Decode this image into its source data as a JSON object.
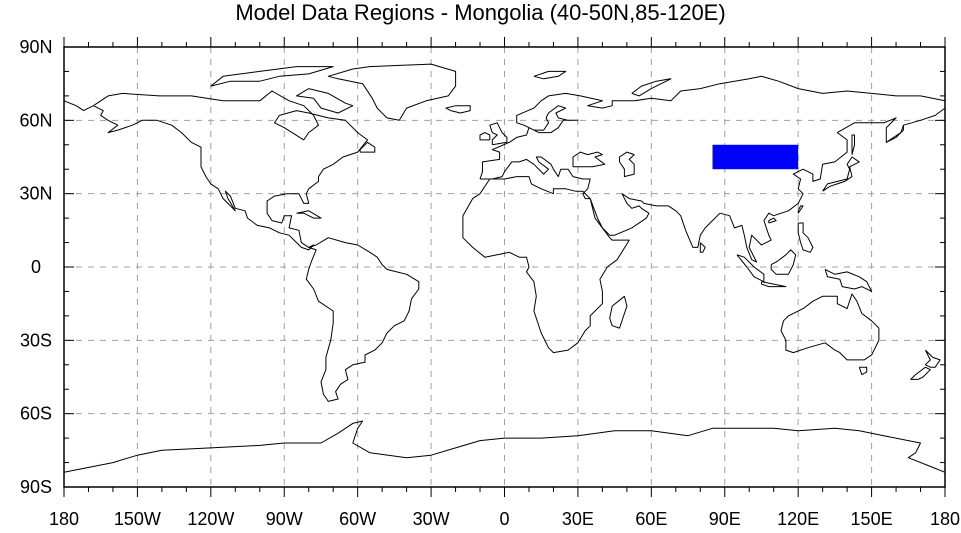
{
  "title": "Model Data Regions - Mongolia (40-50N,85-120E)",
  "x_ticks": [
    {
      "lon": -180,
      "label": "180"
    },
    {
      "lon": -150,
      "label": "150W"
    },
    {
      "lon": -120,
      "label": "120W"
    },
    {
      "lon": -90,
      "label": "90W"
    },
    {
      "lon": -60,
      "label": "60W"
    },
    {
      "lon": -30,
      "label": "30W"
    },
    {
      "lon": 0,
      "label": "0"
    },
    {
      "lon": 30,
      "label": "30E"
    },
    {
      "lon": 60,
      "label": "60E"
    },
    {
      "lon": 90,
      "label": "90E"
    },
    {
      "lon": 120,
      "label": "120E"
    },
    {
      "lon": 150,
      "label": "150E"
    },
    {
      "lon": 180,
      "label": "180"
    }
  ],
  "y_ticks": [
    {
      "lat": 90,
      "label": "90N"
    },
    {
      "lat": 60,
      "label": "60N"
    },
    {
      "lat": 30,
      "label": "30N"
    },
    {
      "lat": 0,
      "label": "0"
    },
    {
      "lat": -30,
      "label": "30S"
    },
    {
      "lat": -60,
      "label": "60S"
    },
    {
      "lat": -90,
      "label": "90S"
    }
  ],
  "region": {
    "lat_min": 40,
    "lat_max": 50,
    "lon_min": 85,
    "lon_max": 120,
    "color": "#0000ff"
  },
  "colors": {
    "coastline": "#000000",
    "grid": "#a0a0a0",
    "frame": "#000000"
  },
  "gridlines": true,
  "projection": "cylindrical-equidistant"
}
